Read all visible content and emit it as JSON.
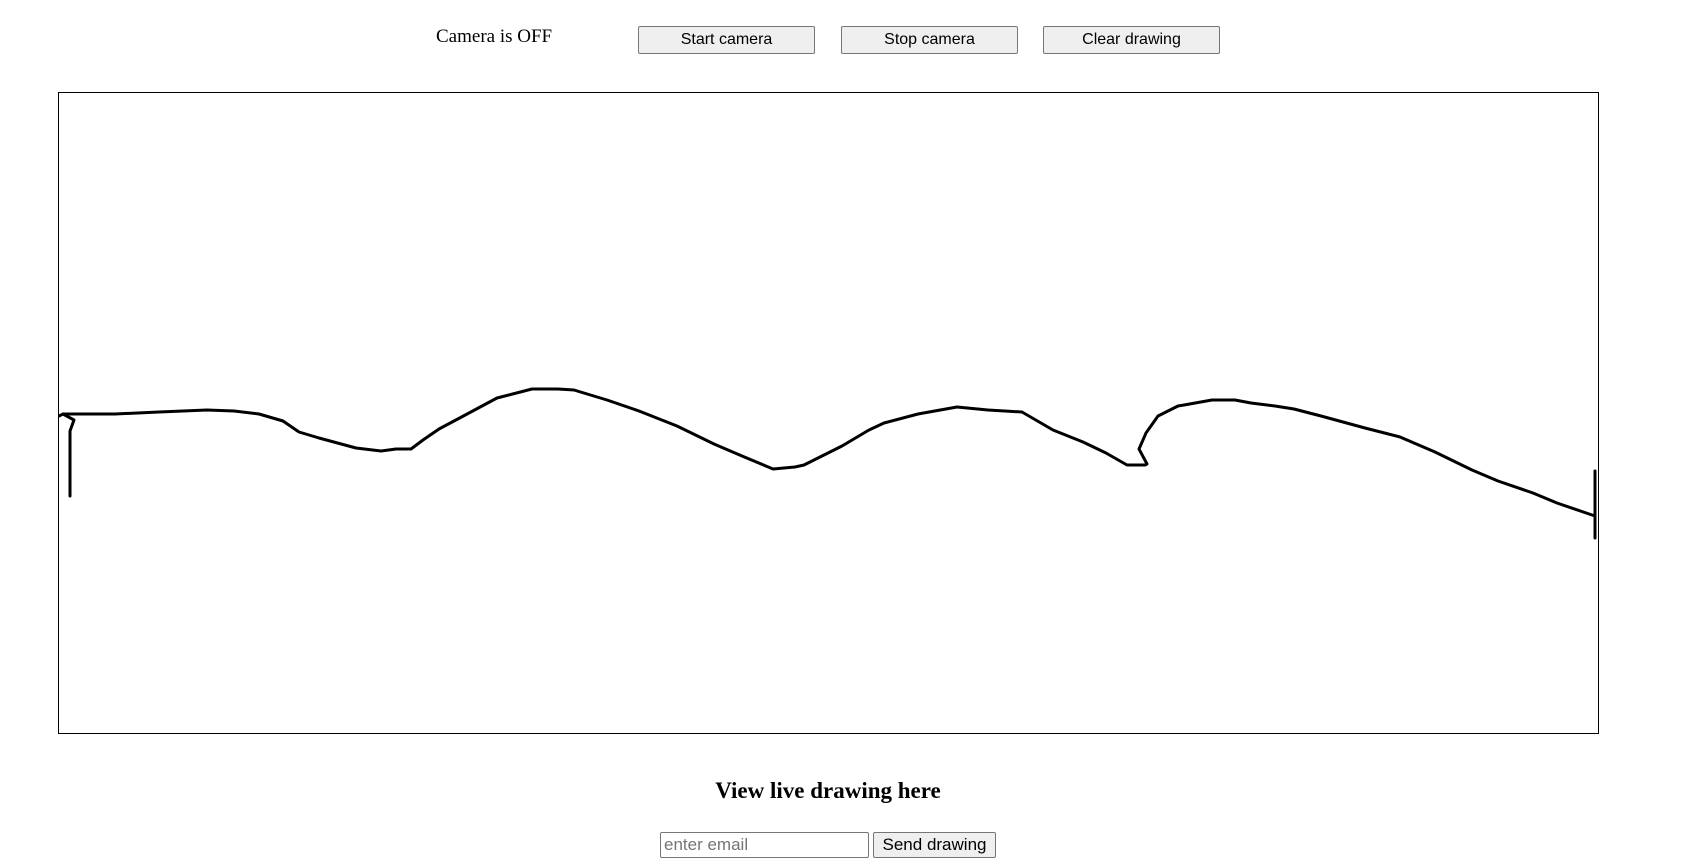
{
  "status": {
    "camera_text": "Camera is OFF"
  },
  "toolbar": {
    "start_label": "Start camera",
    "stop_label": "Stop camera",
    "clear_label": "Clear drawing"
  },
  "canvas": {
    "stroke_color": "#000000"
  },
  "share": {
    "heading": "View live drawing here",
    "email_placeholder": "enter email",
    "email_value": "",
    "send_label": "Send drawing"
  }
}
